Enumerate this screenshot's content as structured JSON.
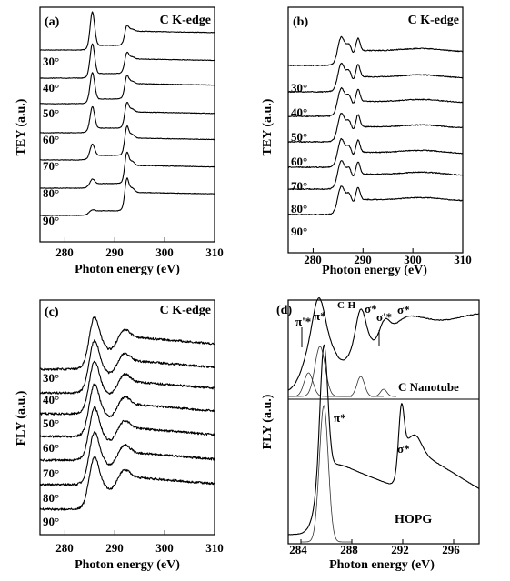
{
  "chart_data": [
    {
      "type": "line",
      "panel": "(a)",
      "edge_label": "C K-edge",
      "xlabel": "Photon energy (eV)",
      "ylabel": "TEY (a.u.)",
      "xlim": [
        275,
        310
      ],
      "xticks": [
        280,
        290,
        300,
        310
      ],
      "series": [
        {
          "name": "30°",
          "peaks": [
            {
              "x": 285.5,
              "h": 1.0
            },
            {
              "x": 292.3,
              "h": 0.45
            }
          ]
        },
        {
          "name": "40°",
          "peaks": [
            {
              "x": 285.5,
              "h": 0.9
            },
            {
              "x": 292.3,
              "h": 0.5
            }
          ]
        },
        {
          "name": "50°",
          "peaks": [
            {
              "x": 285.5,
              "h": 0.8
            },
            {
              "x": 292.3,
              "h": 0.6
            }
          ]
        },
        {
          "name": "60°",
          "peaks": [
            {
              "x": 285.5,
              "h": 0.65
            },
            {
              "x": 292.3,
              "h": 0.7
            }
          ]
        },
        {
          "name": "70°",
          "peaks": [
            {
              "x": 285.5,
              "h": 0.35
            },
            {
              "x": 292.3,
              "h": 0.85
            }
          ]
        },
        {
          "name": "80°",
          "peaks": [
            {
              "x": 285.5,
              "h": 0.15
            },
            {
              "x": 292.3,
              "h": 0.95
            }
          ]
        },
        {
          "name": "90°",
          "peaks": [
            {
              "x": 285.5,
              "h": 0.05
            },
            {
              "x": 292.3,
              "h": 1.0
            }
          ]
        }
      ]
    },
    {
      "type": "line",
      "panel": "(b)",
      "edge_label": "C K-edge",
      "xlabel": "Photon energy (eV)",
      "ylabel": "TEY (a.u.)",
      "xlim": [
        275,
        310
      ],
      "xticks": [
        280,
        290,
        300,
        310
      ],
      "series": [
        {
          "name": "30°"
        },
        {
          "name": "40°"
        },
        {
          "name": "50°"
        },
        {
          "name": "60°"
        },
        {
          "name": "70°"
        },
        {
          "name": "80°"
        },
        {
          "name": "90°"
        }
      ]
    },
    {
      "type": "line",
      "panel": "(c)",
      "edge_label": "C K-edge",
      "xlabel": "Photon energy (eV)",
      "ylabel": "FLY (a.u.)",
      "xlim": [
        275,
        310
      ],
      "xticks": [
        280,
        290,
        300,
        310
      ],
      "series": [
        {
          "name": "30°"
        },
        {
          "name": "40°"
        },
        {
          "name": "50°"
        },
        {
          "name": "60°"
        },
        {
          "name": "70°"
        },
        {
          "name": "80°"
        },
        {
          "name": "90°"
        }
      ]
    },
    {
      "type": "line",
      "panel": "(d)",
      "xlabel": "Photon energy (eV)",
      "ylabel": "FLY (a.u.)",
      "xlim": [
        283,
        298
      ],
      "xticks": [
        284,
        288,
        292,
        296
      ],
      "annotations": [
        "π'*",
        "π*",
        "C-H",
        "σ'*",
        "σ*",
        "σ*",
        "π*",
        "σ*"
      ],
      "series": [
        {
          "name": "C Nanotube",
          "peaks": [
            {
              "x": 285.4,
              "label": "π*"
            },
            {
              "x": 284.6,
              "label": "π'*"
            },
            {
              "x": 288.6,
              "label": "C-H"
            },
            {
              "x": 290.6,
              "label": "σ'*"
            },
            {
              "x": 292.2,
              "label": "σ*"
            }
          ]
        },
        {
          "name": "HOPG",
          "peaks": [
            {
              "x": 285.7,
              "label": "π*"
            },
            {
              "x": 291.8,
              "label": "σ*"
            }
          ]
        }
      ]
    }
  ]
}
